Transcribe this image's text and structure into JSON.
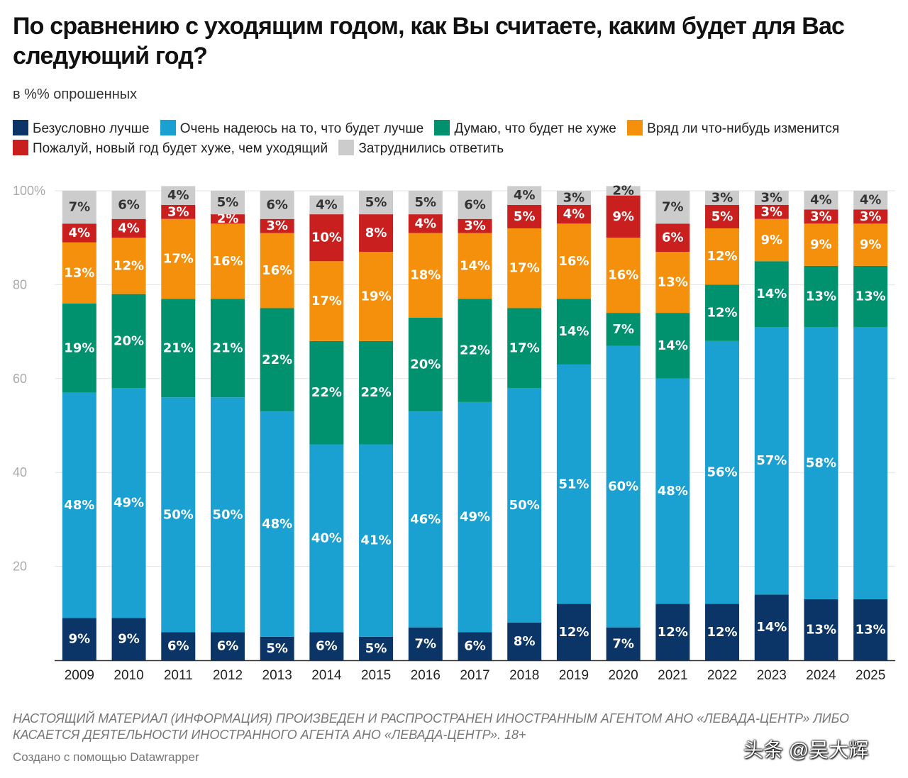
{
  "title": "По сравнению с уходящим годом, как Вы считаете, каким будет для Вас следующий год?",
  "subtitle": "в %% опрошенных",
  "footnote": "НАСТОЯЩИЙ МАТЕРИАЛ (ИНФОРМАЦИЯ) ПРОИЗВЕДЕН И РАСПРОСТРАНЕН ИНОСТРАННЫМ АГЕНТОМ АНО «ЛЕВАДА-ЦЕНТР» ЛИБО КАСАЕТСЯ ДЕЯТЕЛЬНОСТИ ИНОСТРАННОГО АГЕНТА АНО «ЛЕВАДА-ЦЕНТР». 18+",
  "credit": "Создано с помощью Datawrapper",
  "watermark": "头条 @吴大辉",
  "legend": [
    {
      "label": "Безусловно лучше",
      "color": "#0b3566"
    },
    {
      "label": "Очень надеюсь на то, что будет лучше",
      "color": "#1aa0d1"
    },
    {
      "label": "Думаю, что будет не хуже",
      "color": "#00916e"
    },
    {
      "label": "Вряд ли что-нибудь изменится",
      "color": "#f5900d"
    },
    {
      "label": "Пожалуй,  новый год будет хуже, чем уходящий",
      "color": "#c9201f"
    },
    {
      "label": "Затруднились ответить",
      "color": "#cccccc"
    }
  ],
  "chart_data": {
    "type": "bar",
    "stacked": true,
    "title": "По сравнению с уходящим годом, как Вы считаете, каким будет для Вас следующий год?",
    "ylabel": "в %% опрошенных",
    "ylim": [
      0,
      100
    ],
    "yticks": [
      20,
      40,
      60,
      80,
      100
    ],
    "ytick_labels": [
      "20",
      "40",
      "60",
      "80",
      "100%"
    ],
    "grid": true,
    "categories": [
      "2009",
      "2010",
      "2011",
      "2012",
      "2013",
      "2014",
      "2015",
      "2016",
      "2017",
      "2018",
      "2019",
      "2020",
      "2021",
      "2022",
      "2023",
      "2024",
      "2025"
    ],
    "series": [
      {
        "name": "Безусловно лучше",
        "color": "#0b3566",
        "values": [
          9,
          9,
          6,
          6,
          5,
          6,
          5,
          7,
          6,
          8,
          12,
          7,
          12,
          12,
          14,
          13,
          13
        ],
        "labels": [
          "9%",
          "9%",
          "6%",
          "6%",
          "5%",
          "6%",
          "5%",
          "7%",
          "6%",
          "8%",
          "12%",
          "7%",
          "12%",
          "12%",
          "14%",
          "13%",
          "13%"
        ]
      },
      {
        "name": "Очень надеюсь на то, что будет лучше",
        "color": "#1aa0d1",
        "values": [
          48,
          49,
          50,
          50,
          48,
          40,
          41,
          46,
          49,
          50,
          51,
          60,
          48,
          56,
          57,
          58,
          58
        ],
        "labels": [
          "48%",
          "49%",
          "50%",
          "50%",
          "48%",
          "40%",
          "41%",
          "46%",
          "49%",
          "50%",
          "51%",
          "60%",
          "48%",
          "56%",
          "57%",
          "58%",
          ""
        ]
      },
      {
        "name": "Думаю, что будет не хуже",
        "color": "#00916e",
        "values": [
          19,
          20,
          21,
          21,
          22,
          22,
          22,
          20,
          22,
          17,
          14,
          7,
          14,
          12,
          14,
          13,
          13
        ],
        "labels": [
          "19%",
          "20%",
          "21%",
          "21%",
          "22%",
          "22%",
          "22%",
          "20%",
          "22%",
          "17%",
          "14%",
          "7%",
          "14%",
          "12%",
          "14%",
          "13%",
          "13%"
        ]
      },
      {
        "name": "Вряд ли что-нибудь изменится",
        "color": "#f5900d",
        "values": [
          13,
          12,
          17,
          16,
          16,
          17,
          19,
          18,
          14,
          17,
          16,
          16,
          13,
          12,
          9,
          9,
          9
        ],
        "labels": [
          "13%",
          "12%",
          "17%",
          "16%",
          "16%",
          "17%",
          "19%",
          "18%",
          "14%",
          "17%",
          "16%",
          "16%",
          "13%",
          "12%",
          "9%",
          "9%",
          "9%"
        ]
      },
      {
        "name": "Пожалуй,  новый год будет хуже, чем уходящий",
        "color": "#c9201f",
        "values": [
          4,
          4,
          3,
          2,
          3,
          10,
          8,
          4,
          3,
          5,
          4,
          9,
          6,
          5,
          3,
          3,
          3
        ],
        "labels": [
          "4%",
          "4%",
          "3%",
          "2%",
          "3%",
          "10%",
          "8%",
          "4%",
          "3%",
          "5%",
          "4%",
          "9%",
          "6%",
          "5%",
          "3%",
          "3%",
          "3%"
        ]
      },
      {
        "name": "Затруднились ответить",
        "color": "#cccccc",
        "values": [
          7,
          6,
          4,
          5,
          6,
          4,
          5,
          5,
          6,
          4,
          3,
          2,
          7,
          3,
          3,
          4,
          4
        ],
        "labels": [
          "7%",
          "6%",
          "4%",
          "5%",
          "6%",
          "4%",
          "5%",
          "5%",
          "6%",
          "4%",
          "3%",
          "2%",
          "7%",
          "3%",
          "3%",
          "4%",
          "4%"
        ]
      }
    ]
  }
}
